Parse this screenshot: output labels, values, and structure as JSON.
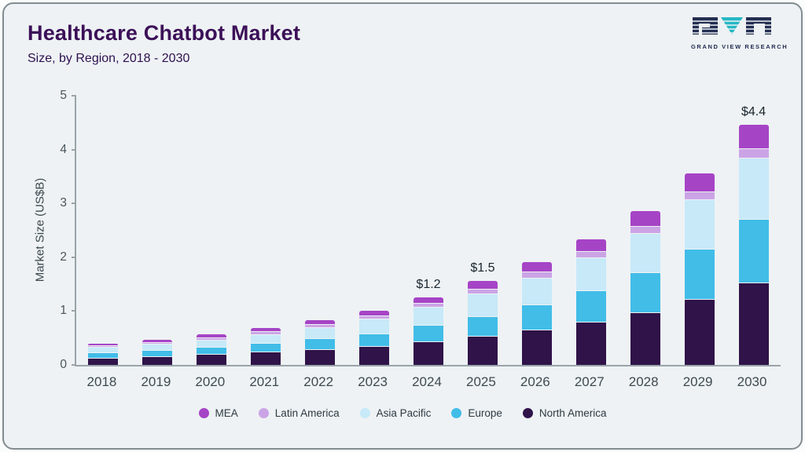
{
  "header": {
    "title": "Healthcare Chatbot Market",
    "subtitle": "Size, by Region, 2018 - 2030",
    "logo_text": "GRAND VIEW RESEARCH"
  },
  "chart_data": {
    "type": "bar",
    "stacked": true,
    "title": "Healthcare Chatbot Market Size, by Region, 2018 - 2030",
    "xlabel": "",
    "ylabel": "Market Size (US$B)",
    "ylim": [
      0,
      5
    ],
    "yticks": [
      0,
      1,
      2,
      3,
      4,
      5
    ],
    "grid": false,
    "legend_position": "bottom",
    "categories": [
      "2018",
      "2019",
      "2020",
      "2021",
      "2022",
      "2023",
      "2024",
      "2025",
      "2026",
      "2027",
      "2028",
      "2029",
      "2030"
    ],
    "series": [
      {
        "name": "North America",
        "color": "#2f1349",
        "values": [
          0.12,
          0.15,
          0.19,
          0.23,
          0.28,
          0.33,
          0.42,
          0.52,
          0.64,
          0.79,
          0.97,
          1.21,
          1.52
        ]
      },
      {
        "name": "Europe",
        "color": "#41bde8",
        "values": [
          0.08,
          0.1,
          0.12,
          0.15,
          0.19,
          0.23,
          0.29,
          0.36,
          0.45,
          0.57,
          0.72,
          0.92,
          1.16
        ]
      },
      {
        "name": "Asia Pacific",
        "color": "#c7e9f8",
        "values": [
          0.09,
          0.1,
          0.12,
          0.15,
          0.19,
          0.25,
          0.32,
          0.4,
          0.49,
          0.6,
          0.72,
          0.9,
          1.12
        ]
      },
      {
        "name": "Latin America",
        "color": "#cba4e6",
        "values": [
          0.02,
          0.02,
          0.03,
          0.04,
          0.04,
          0.05,
          0.06,
          0.07,
          0.09,
          0.1,
          0.12,
          0.14,
          0.17
        ]
      },
      {
        "name": "MEA",
        "color": "#a644c6",
        "values": [
          0.03,
          0.04,
          0.05,
          0.06,
          0.07,
          0.09,
          0.11,
          0.15,
          0.18,
          0.21,
          0.27,
          0.33,
          0.43
        ]
      }
    ],
    "annotations": [
      {
        "category": "2024",
        "label": "$1.2"
      },
      {
        "category": "2025",
        "label": "$1.5"
      },
      {
        "category": "2030",
        "label": "$4.4"
      }
    ],
    "legend_order": [
      "MEA",
      "Latin America",
      "Asia Pacific",
      "Europe",
      "North America"
    ]
  }
}
